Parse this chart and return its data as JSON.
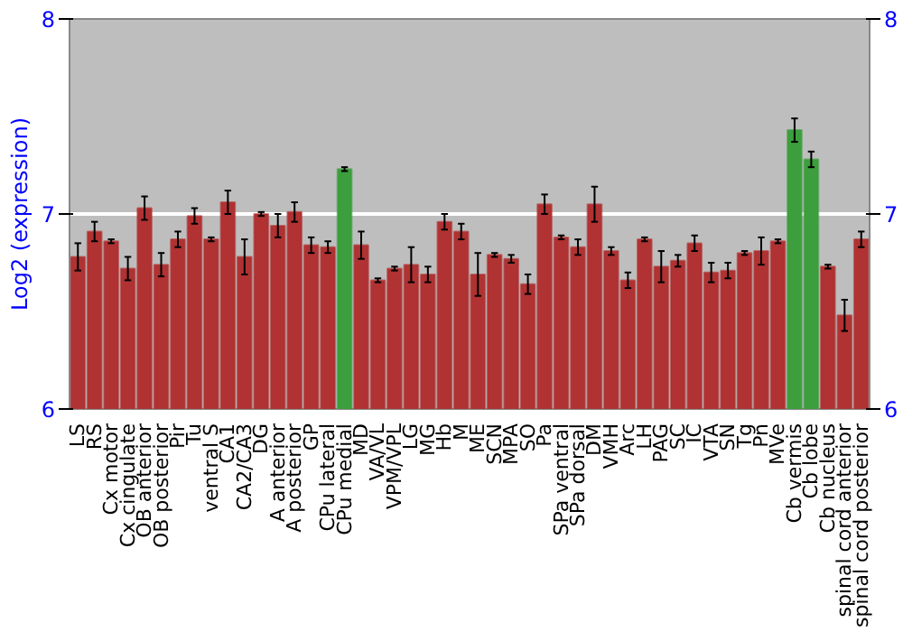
{
  "chart_data": {
    "type": "bar",
    "ylabel": "Log2 (expression)",
    "categories": [
      "LS",
      "RS",
      "Cx motor",
      "Cx cingulate",
      "OB anterior",
      "OB posterior",
      "Pir",
      "Tu",
      "ventral S",
      "CA1",
      "CA2/CA3",
      "DG",
      "A anterior",
      "A posterior",
      "GP",
      "CPu lateral",
      "CPu medial",
      "MD",
      "VA/VL",
      "VPM/VPL",
      "LG",
      "MG",
      "Hb",
      "M",
      "ME",
      "SCN",
      "MPA",
      "SO",
      "Pa",
      "SPa ventral",
      "SPa dorsal",
      "DM",
      "VMH",
      "Arc",
      "LH",
      "PAG",
      "SC",
      "IC",
      "VTA",
      "SN",
      "Tg",
      "Pn",
      "MVe",
      "Cb vermis",
      "Cb lobe",
      "Cb nucleus",
      "spinal cord anterior",
      "spinal cord posterior"
    ],
    "values": [
      6.78,
      6.91,
      6.86,
      6.72,
      7.03,
      6.74,
      6.87,
      6.99,
      6.87,
      7.06,
      6.78,
      7.0,
      6.94,
      7.01,
      6.84,
      6.83,
      7.23,
      6.84,
      6.66,
      6.72,
      6.74,
      6.69,
      6.96,
      6.91,
      6.69,
      6.79,
      6.77,
      6.64,
      7.05,
      6.88,
      6.83,
      7.05,
      6.81,
      6.66,
      6.87,
      6.73,
      6.76,
      6.85,
      6.7,
      6.71,
      6.8,
      6.81,
      6.86,
      7.43,
      7.28,
      6.73,
      6.48,
      6.87
    ],
    "errors": [
      0.07,
      0.05,
      0.01,
      0.06,
      0.06,
      0.06,
      0.04,
      0.04,
      0.01,
      0.06,
      0.09,
      0.01,
      0.06,
      0.05,
      0.04,
      0.03,
      0.01,
      0.07,
      0.01,
      0.01,
      0.09,
      0.04,
      0.04,
      0.04,
      0.11,
      0.01,
      0.02,
      0.05,
      0.05,
      0.01,
      0.04,
      0.09,
      0.02,
      0.04,
      0.01,
      0.08,
      0.03,
      0.04,
      0.05,
      0.04,
      0.01,
      0.07,
      0.01,
      0.06,
      0.04,
      0.01,
      0.08,
      0.04
    ],
    "colors": [
      "#b03232",
      "#b03232",
      "#b03232",
      "#b03232",
      "#b03232",
      "#b03232",
      "#b03232",
      "#b03232",
      "#b03232",
      "#b03232",
      "#b03232",
      "#b03232",
      "#b03232",
      "#b03232",
      "#b03232",
      "#b03232",
      "#3c9e3c",
      "#b03232",
      "#b03232",
      "#b03232",
      "#b03232",
      "#b03232",
      "#b03232",
      "#b03232",
      "#b03232",
      "#b03232",
      "#b03232",
      "#b03232",
      "#b03232",
      "#b03232",
      "#b03232",
      "#b03232",
      "#b03232",
      "#b03232",
      "#b03232",
      "#b03232",
      "#b03232",
      "#b03232",
      "#b03232",
      "#b03232",
      "#b03232",
      "#b03232",
      "#b03232",
      "#3c9e3c",
      "#3c9e3c",
      "#b03232",
      "#b03232",
      "#b03232"
    ],
    "ylim": [
      6,
      8
    ],
    "yticks": [
      6,
      7,
      8
    ],
    "y2lim": [
      6,
      8
    ],
    "y2ticks": [
      6,
      7,
      8
    ],
    "grid": "y"
  }
}
